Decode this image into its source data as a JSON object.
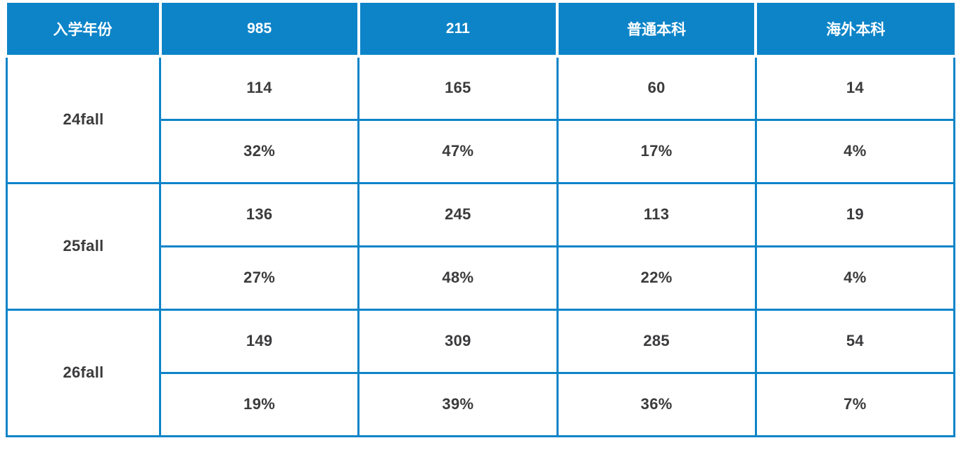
{
  "chart_data": {
    "type": "table",
    "columns": [
      "入学年份",
      "985",
      "211",
      "普通本科",
      "海外本科"
    ],
    "sections": [
      {
        "year": "24fall",
        "counts": [
          "114",
          "165",
          "60",
          "14"
        ],
        "percents": [
          "32%",
          "47%",
          "17%",
          "4%"
        ]
      },
      {
        "year": "25fall",
        "counts": [
          "136",
          "245",
          "113",
          "19"
        ],
        "percents": [
          "27%",
          "48%",
          "22%",
          "4%"
        ]
      },
      {
        "year": "26fall",
        "counts": [
          "149",
          "309",
          "285",
          "54"
        ],
        "percents": [
          "19%",
          "39%",
          "36%",
          "7%"
        ]
      }
    ]
  },
  "colors": {
    "header_bg": "#0d84c8",
    "border": "#0d84c8",
    "header_text": "#ffffff",
    "cell_text": "#3b3b3d",
    "background": "#ffffff"
  }
}
